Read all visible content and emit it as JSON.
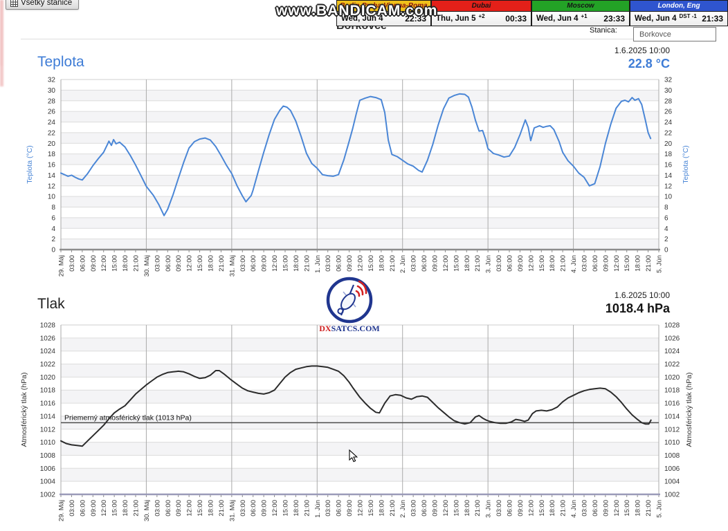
{
  "toolbar": {
    "all_stations": "Všetky stanice"
  },
  "watermark": "www.BANDICAM.com",
  "clocks": [
    {
      "label": "Berlin-Praha-Vienna-Roma",
      "header_bg": "#f0c11b",
      "header_fg": "#8a1010",
      "date": "Wed, Jun 4",
      "offset": "",
      "time": "22:33"
    },
    {
      "label": "Dubai",
      "header_bg": "#e32019",
      "header_fg": "#151515",
      "date": "Thu, Jun 5",
      "offset": "+2",
      "time": "00:33"
    },
    {
      "label": "Moscow",
      "header_bg": "#23a226",
      "header_fg": "#151515",
      "date": "Wed, Jun 4",
      "offset": "+1",
      "time": "23:33"
    },
    {
      "label": "London, Eng",
      "header_bg": "#2f55cf",
      "header_fg": "#ffffff",
      "date": "Wed, Jun 4",
      "offset": "DST -1",
      "time": "21:33"
    }
  ],
  "station": {
    "name": "Borkovce",
    "selector_label": "Stanica:",
    "selector_value": "Borkovce"
  },
  "logo": {
    "dx": "DX",
    "rest": "SATCS.COM"
  },
  "chart_data": [
    {
      "type": "line",
      "title": "Teplota",
      "timestamp": "1.6.2025 10:00",
      "current_value": "22.8 °C",
      "ylabel": "Teplota (°C)",
      "ylim": [
        0,
        32
      ],
      "ytick_step": 2,
      "line_color": "#4a86d6",
      "axis_color": "#4a86d6",
      "grid": true,
      "legend": "none",
      "tick_interval_hours": 3,
      "tick_labels": [
        "29. Máj",
        "03:00",
        "06:00",
        "09:00",
        "12:00",
        "15:00",
        "18:00",
        "21:00",
        "30. Máj",
        "03:00",
        "06:00",
        "09:00",
        "12:00",
        "15:00",
        "18:00",
        "21:00",
        "31. Máj",
        "03:00",
        "06:00",
        "09:00",
        "12:00",
        "15:00",
        "18:00",
        "21:00",
        "1. Jún",
        "03:00",
        "06:00",
        "09:00",
        "12:00",
        "15:00",
        "18:00",
        "21:00",
        "2. Jún",
        "03:00",
        "06:00",
        "09:00",
        "12:00",
        "15:00",
        "18:00",
        "21:00",
        "3. Jún",
        "03:00",
        "06:00",
        "09:00",
        "12:00",
        "15:00",
        "18:00",
        "21:00",
        "4. Jún",
        "03:00",
        "06:00",
        "09:00",
        "12:00",
        "15:00",
        "18:00",
        "21:00",
        "5. Jún"
      ],
      "points": [
        [
          0,
          14.4
        ],
        [
          2,
          13.8
        ],
        [
          3,
          14.0
        ],
        [
          4,
          13.6
        ],
        [
          5,
          13.3
        ],
        [
          6,
          13.1
        ],
        [
          7.5,
          14.3
        ],
        [
          9,
          15.8
        ],
        [
          10.5,
          17.1
        ],
        [
          12,
          18.3
        ],
        [
          13,
          19.7
        ],
        [
          13.5,
          20.4
        ],
        [
          14.2,
          19.6
        ],
        [
          14.8,
          20.7
        ],
        [
          15.5,
          19.9
        ],
        [
          16.5,
          20.2
        ],
        [
          18,
          19.3
        ],
        [
          19.5,
          17.7
        ],
        [
          21,
          15.9
        ],
        [
          22.5,
          13.9
        ],
        [
          24,
          11.9
        ],
        [
          26,
          10.2
        ],
        [
          27.5,
          8.5
        ],
        [
          29,
          6.4
        ],
        [
          30,
          7.6
        ],
        [
          31.5,
          10.3
        ],
        [
          33,
          13.4
        ],
        [
          34.5,
          16.4
        ],
        [
          36,
          19.1
        ],
        [
          37.5,
          20.3
        ],
        [
          39,
          20.8
        ],
        [
          40.5,
          21.0
        ],
        [
          42,
          20.6
        ],
        [
          43.5,
          19.4
        ],
        [
          45,
          17.7
        ],
        [
          46.5,
          15.9
        ],
        [
          48,
          14.3
        ],
        [
          49.5,
          12.0
        ],
        [
          51,
          10.1
        ],
        [
          52,
          9.0
        ],
        [
          53.5,
          10.2
        ],
        [
          54,
          11.2
        ],
        [
          55.5,
          14.8
        ],
        [
          57,
          18.3
        ],
        [
          58.5,
          21.6
        ],
        [
          60,
          24.5
        ],
        [
          61.5,
          26.2
        ],
        [
          62.5,
          27.0
        ],
        [
          63.5,
          26.8
        ],
        [
          64.5,
          26.2
        ],
        [
          66,
          24.2
        ],
        [
          67.5,
          21.3
        ],
        [
          69,
          18.1
        ],
        [
          70.5,
          16.2
        ],
        [
          72,
          15.3
        ],
        [
          73.5,
          14.1
        ],
        [
          75,
          13.9
        ],
        [
          76.5,
          13.8
        ],
        [
          78,
          14.1
        ],
        [
          79.5,
          16.9
        ],
        [
          81,
          20.4
        ],
        [
          82,
          22.8
        ],
        [
          83,
          25.6
        ],
        [
          84,
          28.1
        ],
        [
          85.5,
          28.5
        ],
        [
          87,
          28.8
        ],
        [
          88.5,
          28.6
        ],
        [
          90,
          28.2
        ],
        [
          91,
          25.8
        ],
        [
          92,
          20.6
        ],
        [
          93,
          17.9
        ],
        [
          94.5,
          17.5
        ],
        [
          96,
          16.8
        ],
        [
          97.5,
          16.1
        ],
        [
          99,
          15.7
        ],
        [
          100.5,
          14.9
        ],
        [
          101.5,
          14.6
        ],
        [
          103,
          16.8
        ],
        [
          104.5,
          19.8
        ],
        [
          106,
          23.4
        ],
        [
          107.5,
          26.5
        ],
        [
          109,
          28.5
        ],
        [
          110.5,
          29.0
        ],
        [
          112,
          29.3
        ],
        [
          113.5,
          29.2
        ],
        [
          114.5,
          28.7
        ],
        [
          115.5,
          26.8
        ],
        [
          116.5,
          24.3
        ],
        [
          117.5,
          22.3
        ],
        [
          118.5,
          22.4
        ],
        [
          119.3,
          20.8
        ],
        [
          120,
          19.0
        ],
        [
          121.5,
          18.1
        ],
        [
          123,
          17.8
        ],
        [
          124.5,
          17.4
        ],
        [
          126,
          17.6
        ],
        [
          127.5,
          19.2
        ],
        [
          129,
          21.6
        ],
        [
          130.5,
          24.4
        ],
        [
          131.3,
          23.0
        ],
        [
          132,
          20.5
        ],
        [
          133,
          22.9
        ],
        [
          134.5,
          23.3
        ],
        [
          135.5,
          23.0
        ],
        [
          136.5,
          23.2
        ],
        [
          137.5,
          23.3
        ],
        [
          138.5,
          22.6
        ],
        [
          140,
          20.3
        ],
        [
          141,
          18.3
        ],
        [
          142.5,
          16.7
        ],
        [
          144,
          15.7
        ],
        [
          145.5,
          14.4
        ],
        [
          147,
          13.6
        ],
        [
          148.5,
          12.0
        ],
        [
          150,
          12.4
        ],
        [
          151.5,
          15.6
        ],
        [
          153,
          20.0
        ],
        [
          154.5,
          23.6
        ],
        [
          156,
          26.6
        ],
        [
          157.5,
          27.9
        ],
        [
          158.5,
          28.1
        ],
        [
          159.5,
          27.8
        ],
        [
          160.5,
          28.6
        ],
        [
          161.3,
          28.1
        ],
        [
          162.3,
          28.4
        ],
        [
          163.2,
          27.3
        ],
        [
          164.2,
          24.4
        ],
        [
          165,
          22.0
        ],
        [
          165.7,
          20.9
        ]
      ]
    },
    {
      "type": "line",
      "title": "Tlak",
      "timestamp": "1.6.2025 10:00",
      "current_value": "1018.4 hPa",
      "ylabel": "Atmosférický tlak (hPa)",
      "ylim": [
        1002,
        1028
      ],
      "ytick_step": 2,
      "line_color": "#2b2b2b",
      "axis_color": "#333333",
      "grid": true,
      "legend": "none",
      "ref_line": {
        "value": 1013,
        "label": "Priemerný atmosférický tlak (1013 hPa)"
      },
      "tick_interval_hours": 3,
      "tick_labels": [
        "29. Máj",
        "03:00",
        "06:00",
        "09:00",
        "12:00",
        "15:00",
        "18:00",
        "21:00",
        "30. Máj",
        "03:00",
        "06:00",
        "09:00",
        "12:00",
        "15:00",
        "18:00",
        "21:00",
        "31. Máj",
        "03:00",
        "06:00",
        "09:00",
        "12:00",
        "15:00",
        "18:00",
        "21:00",
        "1. Jún",
        "03:00",
        "06:00",
        "09:00",
        "12:00",
        "15:00",
        "18:00",
        "21:00",
        "2. Jún",
        "03:00",
        "06:00",
        "09:00",
        "12:00",
        "15:00",
        "18:00",
        "21:00",
        "3. Jún",
        "03:00",
        "06:00",
        "09:00",
        "12:00",
        "15:00",
        "18:00",
        "21:00",
        "4. Jún",
        "03:00",
        "06:00",
        "09:00",
        "12:00",
        "15:00",
        "18:00",
        "21:00",
        "5. Jún"
      ],
      "points": [
        [
          0,
          1010.2
        ],
        [
          1.5,
          1009.8
        ],
        [
          3,
          1009.6
        ],
        [
          4.5,
          1009.5
        ],
        [
          6,
          1009.4
        ],
        [
          7.5,
          1010.2
        ],
        [
          9,
          1011.0
        ],
        [
          10.5,
          1011.8
        ],
        [
          12,
          1012.6
        ],
        [
          13.5,
          1013.6
        ],
        [
          15,
          1014.5
        ],
        [
          16.5,
          1015.1
        ],
        [
          18,
          1015.6
        ],
        [
          19.5,
          1016.5
        ],
        [
          21,
          1017.4
        ],
        [
          22.5,
          1018.1
        ],
        [
          24,
          1018.8
        ],
        [
          25.5,
          1019.4
        ],
        [
          27,
          1020.0
        ],
        [
          28.5,
          1020.4
        ],
        [
          30,
          1020.7
        ],
        [
          31.5,
          1020.8
        ],
        [
          33,
          1020.9
        ],
        [
          34.5,
          1020.8
        ],
        [
          36,
          1020.5
        ],
        [
          37.5,
          1020.1
        ],
        [
          39,
          1019.8
        ],
        [
          40.5,
          1019.9
        ],
        [
          42,
          1020.3
        ],
        [
          43.5,
          1021.0
        ],
        [
          44.5,
          1021.0
        ],
        [
          46,
          1020.4
        ],
        [
          48,
          1019.5
        ],
        [
          49.5,
          1018.9
        ],
        [
          51,
          1018.3
        ],
        [
          52.5,
          1017.9
        ],
        [
          54,
          1017.7
        ],
        [
          55.5,
          1017.5
        ],
        [
          57,
          1017.4
        ],
        [
          58.5,
          1017.6
        ],
        [
          60,
          1018.0
        ],
        [
          61.5,
          1019.0
        ],
        [
          63,
          1020.0
        ],
        [
          64.5,
          1020.7
        ],
        [
          66,
          1021.2
        ],
        [
          67.5,
          1021.4
        ],
        [
          69,
          1021.6
        ],
        [
          70.5,
          1021.7
        ],
        [
          72,
          1021.7
        ],
        [
          73.5,
          1021.6
        ],
        [
          75,
          1021.5
        ],
        [
          76.5,
          1021.2
        ],
        [
          78,
          1020.9
        ],
        [
          79.5,
          1020.2
        ],
        [
          81,
          1019.2
        ],
        [
          82,
          1018.4
        ],
        [
          84,
          1016.9
        ],
        [
          85.5,
          1016.0
        ],
        [
          87,
          1015.2
        ],
        [
          88.5,
          1014.6
        ],
        [
          89.5,
          1014.5
        ],
        [
          91,
          1016.0
        ],
        [
          92.5,
          1017.1
        ],
        [
          94,
          1017.3
        ],
        [
          95.5,
          1017.2
        ],
        [
          97,
          1016.8
        ],
        [
          98.5,
          1016.6
        ],
        [
          100,
          1017.0
        ],
        [
          101.5,
          1017.1
        ],
        [
          103,
          1016.9
        ],
        [
          104.5,
          1016.1
        ],
        [
          106,
          1015.3
        ],
        [
          107.5,
          1014.6
        ],
        [
          109,
          1013.9
        ],
        [
          110.5,
          1013.3
        ],
        [
          112,
          1013.0
        ],
        [
          113.5,
          1012.8
        ],
        [
          115,
          1013.0
        ],
        [
          116.5,
          1013.9
        ],
        [
          117.5,
          1014.1
        ],
        [
          118.5,
          1013.7
        ],
        [
          119.5,
          1013.4
        ],
        [
          120.5,
          1013.2
        ],
        [
          122,
          1013.0
        ],
        [
          123.5,
          1012.9
        ],
        [
          125,
          1012.9
        ],
        [
          126.5,
          1013.1
        ],
        [
          127.8,
          1013.5
        ],
        [
          129,
          1013.4
        ],
        [
          130.3,
          1013.2
        ],
        [
          131.3,
          1013.4
        ],
        [
          132.5,
          1014.4
        ],
        [
          133.5,
          1014.8
        ],
        [
          135,
          1014.9
        ],
        [
          136.5,
          1014.8
        ],
        [
          138,
          1015.0
        ],
        [
          139.5,
          1015.4
        ],
        [
          141,
          1016.2
        ],
        [
          142.5,
          1016.8
        ],
        [
          144,
          1017.2
        ],
        [
          145.5,
          1017.6
        ],
        [
          147,
          1017.9
        ],
        [
          148.5,
          1018.1
        ],
        [
          150,
          1018.2
        ],
        [
          151.5,
          1018.3
        ],
        [
          153,
          1018.2
        ],
        [
          154.5,
          1017.7
        ],
        [
          156,
          1017.0
        ],
        [
          157.5,
          1016.1
        ],
        [
          159,
          1015.1
        ],
        [
          160.5,
          1014.2
        ],
        [
          162,
          1013.5
        ],
        [
          163.2,
          1013.0
        ],
        [
          164.2,
          1012.8
        ],
        [
          165.2,
          1012.8
        ],
        [
          165.8,
          1013.4
        ]
      ]
    }
  ]
}
